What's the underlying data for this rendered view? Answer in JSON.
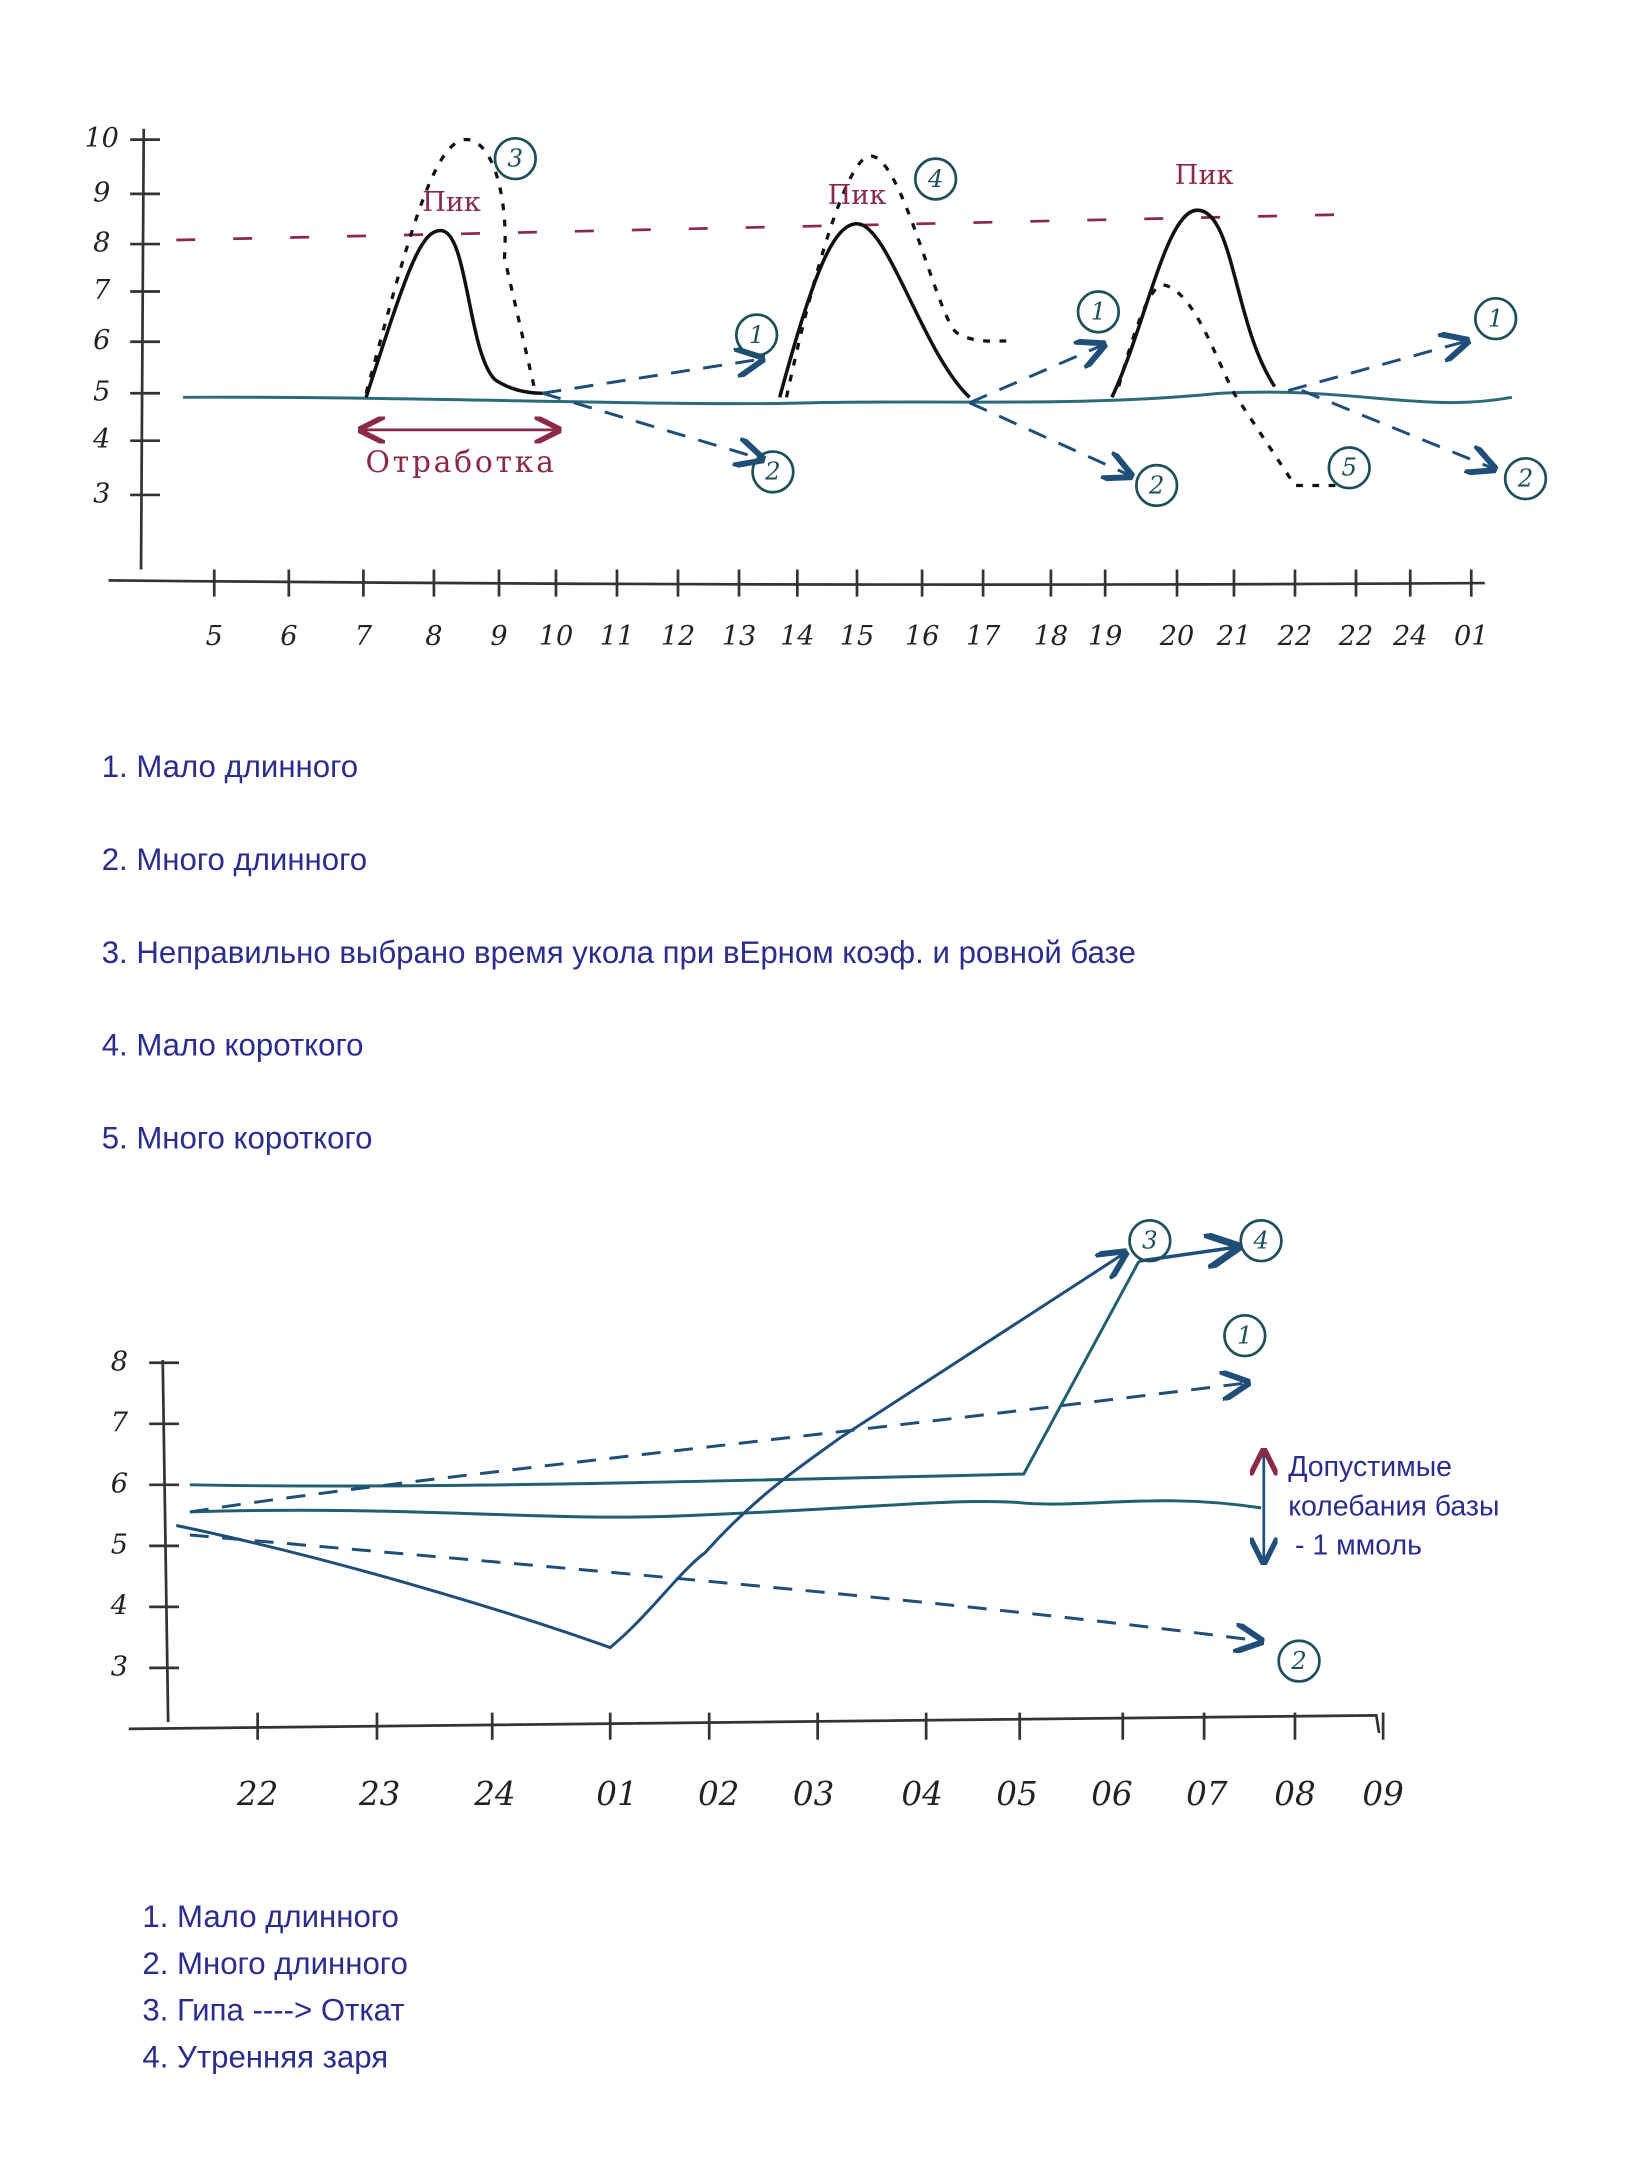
{
  "top_chart": {
    "y_labels": [
      "10",
      "9",
      "8",
      "7",
      "6",
      "5",
      "4",
      "3"
    ],
    "x_labels": [
      "5",
      "6",
      "7",
      "8",
      "9",
      "10",
      "11",
      "12",
      "13",
      "14",
      "15",
      "16",
      "17",
      "18",
      "19",
      "20",
      "21",
      "22",
      "22",
      "24",
      "01"
    ],
    "peak_labels": [
      "Пик",
      "Пик",
      "Пик"
    ],
    "workout_label": "Отработка",
    "markers": [
      "3",
      "4",
      "1",
      "2",
      "1",
      "2",
      "5",
      "1",
      "2"
    ]
  },
  "top_list": [
    "1.  Мало длинного",
    "2.  Много длинного",
    "3.  Неправильно выбрано время укола при вЕрном коэф. и ровной базе",
    "4.  Мало короткого",
    "5.  Много короткого"
  ],
  "bottom_chart": {
    "y_labels": [
      "8",
      "7",
      "6",
      "5",
      "4",
      "3"
    ],
    "x_labels": [
      "22",
      "23",
      "24",
      "01",
      "02",
      "03",
      "04",
      "05",
      "06",
      "07",
      "08",
      "09"
    ],
    "markers": [
      "3",
      "4",
      "1",
      "2"
    ],
    "note": [
      "Допустимые",
      "колебания базы",
      "- 1 ммоль"
    ]
  },
  "bottom_list": [
    "1.  Мало длинного",
    "2.  Много длинного",
    "3. Гипа ----> Откат",
    "4. Утренняя заря"
  ]
}
